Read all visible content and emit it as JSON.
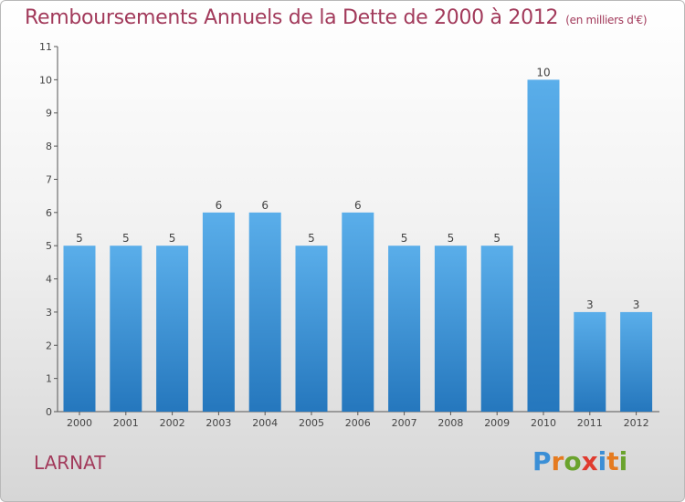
{
  "title": "Remboursements Annuels de la Dette de 2000 à 2012",
  "unit": "(en milliers d'€)",
  "commune": "LARNAT",
  "logo": {
    "text": "Proxiti",
    "letters": [
      "P",
      "r",
      "o",
      "x",
      "i",
      "t",
      "i"
    ],
    "colors": [
      "#3b8fd6",
      "#e57b20",
      "#6aa32d",
      "#e03b2f",
      "#3b8fd6",
      "#e57b20",
      "#6aa32d"
    ]
  },
  "colors": {
    "bar_light": "#5aaeea",
    "bar_dark": "#2577bd",
    "title": "#a23a5b"
  },
  "chart_data": {
    "type": "bar",
    "categories": [
      "2000",
      "2001",
      "2002",
      "2003",
      "2004",
      "2005",
      "2006",
      "2007",
      "2008",
      "2009",
      "2010",
      "2011",
      "2012"
    ],
    "values": [
      5,
      5,
      5,
      6,
      6,
      5,
      6,
      5,
      5,
      5,
      10,
      3,
      3
    ],
    "ylim": [
      0,
      11
    ],
    "yticks": [
      0,
      1,
      2,
      3,
      4,
      5,
      6,
      7,
      8,
      9,
      10,
      11
    ],
    "grid": false,
    "xlabel": "",
    "ylabel": ""
  }
}
